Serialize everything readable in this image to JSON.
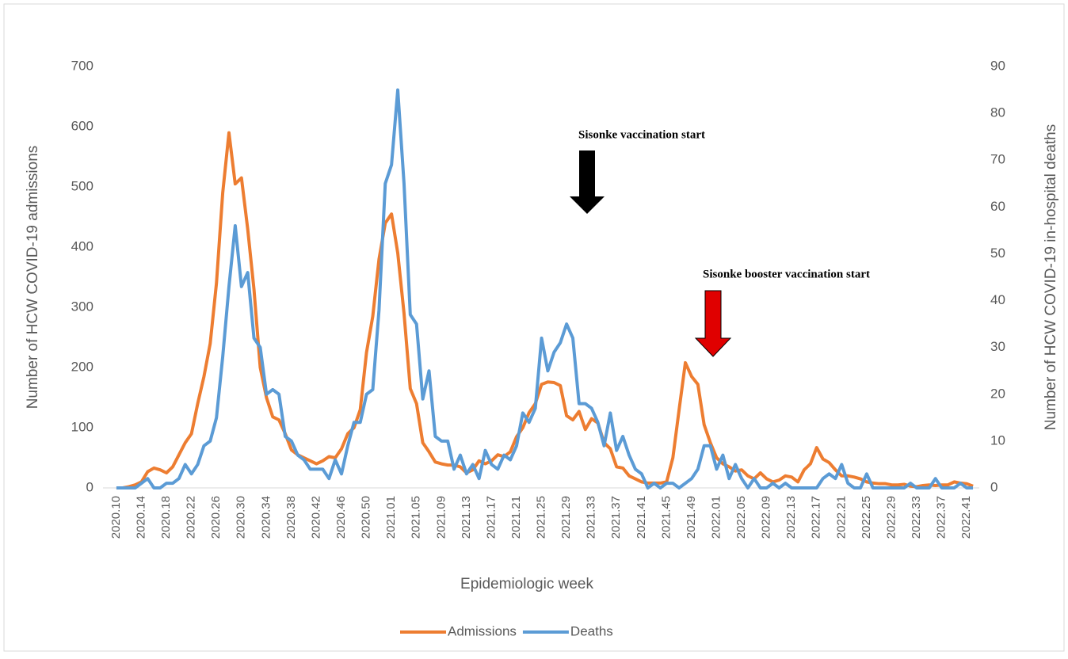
{
  "chart_data": {
    "type": "line",
    "x_label": "Epidemiologic week",
    "y_label": "Number of HCW COVID-19 admissions",
    "y2_label": "Number of HCW COVID-19 in-hospital deaths",
    "annotations": [
      {
        "text": "Sisonke vaccination start"
      },
      {
        "text": "Sisonke booster vaccination start"
      }
    ],
    "categories": [
      "2020.10",
      null,
      null,
      null,
      "2020.14",
      null,
      null,
      null,
      "2020.18",
      null,
      null,
      null,
      "2020.22",
      null,
      null,
      null,
      "2020.26",
      null,
      null,
      null,
      "2020.30",
      null,
      null,
      null,
      "2020.34",
      null,
      null,
      null,
      "2020.38",
      null,
      null,
      null,
      "2020.42",
      null,
      null,
      null,
      "2020.46",
      null,
      null,
      null,
      "2020.50",
      null,
      null,
      null,
      "2021.01",
      null,
      null,
      null,
      "2021.05",
      null,
      null,
      null,
      "2021.09",
      null,
      null,
      null,
      "2021.13",
      null,
      null,
      null,
      "2021.17",
      null,
      null,
      null,
      "2021.21",
      null,
      null,
      null,
      "2021.25",
      null,
      null,
      null,
      "2021.29",
      null,
      null,
      null,
      "2021.33",
      null,
      null,
      null,
      "2021.37",
      null,
      null,
      null,
      "2021.41",
      null,
      null,
      null,
      "2021.45",
      null,
      null,
      null,
      "2021.49",
      null,
      null,
      null,
      "2022.01",
      null,
      null,
      null,
      "2022.05",
      null,
      null,
      null,
      "2022.09",
      null,
      null,
      null,
      "2022.13",
      null,
      null,
      null,
      "2022.17",
      null,
      null,
      null,
      "2022.21",
      null,
      null,
      null,
      "2022.25",
      null,
      null,
      null,
      "2022.29",
      null,
      null,
      null,
      "2022.33",
      null,
      null,
      null,
      "2022.37",
      null,
      null,
      null,
      "2022.41",
      null
    ],
    "series": [
      {
        "name": "Admissions",
        "color": "#ed7d31",
        "axis": "y",
        "values": [
          0,
          0,
          2,
          5,
          10,
          27,
          33,
          30,
          25,
          35,
          55,
          75,
          90,
          140,
          185,
          240,
          340,
          490,
          590,
          505,
          515,
          430,
          330,
          200,
          150,
          118,
          113,
          90,
          63,
          55,
          50,
          45,
          40,
          45,
          52,
          50,
          65,
          90,
          100,
          130,
          225,
          285,
          380,
          440,
          455,
          390,
          290,
          165,
          140,
          75,
          60,
          43,
          40,
          38,
          38,
          35,
          25,
          30,
          45,
          40,
          45,
          55,
          52,
          60,
          85,
          100,
          125,
          140,
          172,
          176,
          175,
          170,
          120,
          113,
          127,
          97,
          115,
          108,
          75,
          65,
          35,
          33,
          20,
          15,
          10,
          8,
          8,
          8,
          10,
          50,
          130,
          208,
          185,
          172,
          105,
          75,
          50,
          40,
          35,
          28,
          30,
          20,
          15,
          25,
          15,
          10,
          13,
          20,
          18,
          10,
          30,
          40,
          67,
          48,
          42,
          30,
          20,
          20,
          18,
          15,
          10,
          8,
          7,
          7,
          5,
          5,
          6,
          3,
          2,
          4,
          5,
          4,
          5,
          5,
          10,
          8,
          7,
          3
        ]
      },
      {
        "name": "Deaths",
        "color": "#5b9bd5",
        "axis": "y2",
        "values": [
          0,
          0,
          0,
          0,
          1,
          2,
          0,
          0,
          1,
          1,
          2,
          5,
          3,
          5,
          9,
          10,
          15,
          28,
          43,
          56,
          43,
          46,
          32,
          30,
          20,
          21,
          20,
          11,
          10,
          7,
          6,
          4,
          4,
          4,
          2,
          6,
          3,
          9,
          14,
          14,
          20,
          21,
          38,
          65,
          69,
          85,
          65,
          37,
          35,
          19,
          25,
          11,
          10,
          10,
          4,
          7,
          3,
          5,
          2,
          8,
          5,
          4,
          7,
          6,
          9,
          16,
          14,
          17,
          32,
          25,
          29,
          31,
          35,
          32,
          18,
          18,
          17,
          14,
          9,
          16,
          8,
          11,
          7,
          4,
          3,
          0,
          1,
          0,
          1,
          1,
          0,
          1,
          2,
          4,
          9,
          9,
          4,
          7,
          2,
          5,
          2,
          0,
          2,
          0,
          0,
          1,
          0,
          1,
          0,
          0,
          0,
          0,
          0,
          2,
          3,
          2,
          5,
          1,
          0,
          0,
          3,
          0,
          0,
          0,
          0,
          0,
          0,
          1,
          0,
          0,
          0,
          2,
          0,
          0,
          0,
          1,
          0,
          0
        ]
      }
    ],
    "ylim": [
      0,
      700
    ],
    "yticks": [
      0,
      100,
      200,
      300,
      400,
      500,
      600,
      700
    ],
    "y2lim": [
      0,
      90
    ],
    "y2ticks": [
      0,
      10,
      20,
      30,
      40,
      50,
      60,
      70,
      80,
      90
    ],
    "grid": false,
    "legend": "bottom"
  }
}
